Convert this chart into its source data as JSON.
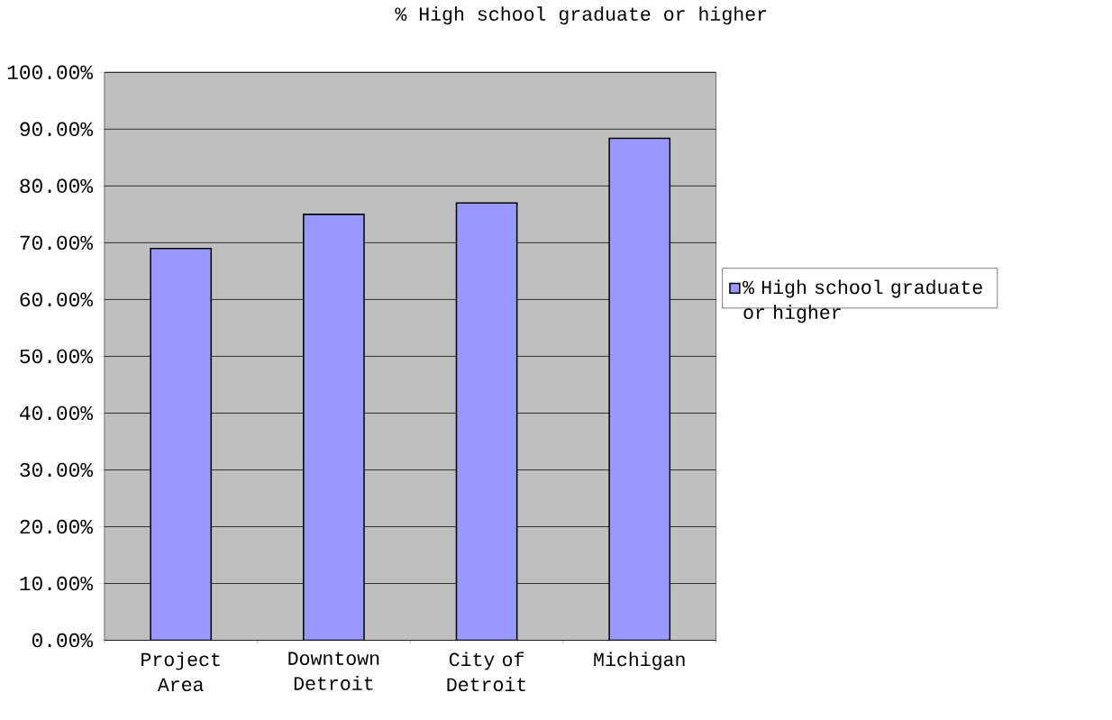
{
  "chart_data": {
    "type": "bar",
    "title": "% High school graduate or higher",
    "categories": [
      "Project Area",
      "Downtown Detroit",
      "City of Detroit",
      "Michigan"
    ],
    "series": [
      {
        "name": "% High school graduate or higher",
        "color": "#9999ff",
        "values": [
          69.0,
          75.0,
          77.0,
          88.4
        ]
      }
    ],
    "ylim": [
      0,
      100
    ],
    "yticks": [
      {
        "value": 0,
        "label": "0.00%"
      },
      {
        "value": 10,
        "label": "10.00%"
      },
      {
        "value": 20,
        "label": "20.00%"
      },
      {
        "value": 30,
        "label": "30.00%"
      },
      {
        "value": 40,
        "label": "40.00%"
      },
      {
        "value": 50,
        "label": "50.00%"
      },
      {
        "value": 60,
        "label": "60.00%"
      },
      {
        "value": 70,
        "label": "70.00%"
      },
      {
        "value": 80,
        "label": "80.00%"
      },
      {
        "value": 90,
        "label": "90.00%"
      },
      {
        "value": 100,
        "label": "100.00%"
      }
    ],
    "grid": "y",
    "legend": "right"
  }
}
